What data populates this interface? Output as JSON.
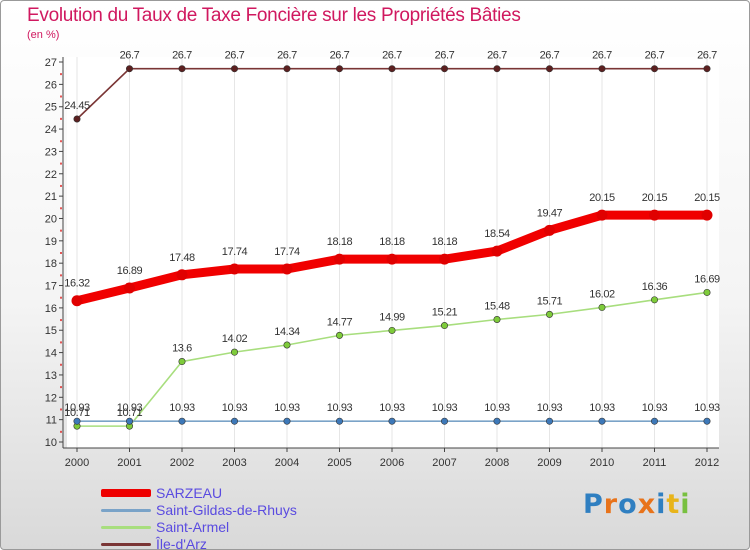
{
  "chart_data": {
    "type": "line",
    "title": "Evolution du Taux de Taxe Foncière sur les Propriétés Bâties",
    "ylabel": "(en %)",
    "xlabel": "",
    "ylim": [
      10,
      27
    ],
    "yticks": [
      10,
      11,
      12,
      13,
      14,
      15,
      16,
      17,
      18,
      19,
      20,
      21,
      22,
      23,
      24,
      25,
      26,
      27
    ],
    "categories": [
      "2000",
      "2001",
      "2002",
      "2003",
      "2004",
      "2005",
      "2006",
      "2007",
      "2008",
      "2009",
      "2010",
      "2011",
      "2012"
    ],
    "series": [
      {
        "name": "Île-d'Arz",
        "color": "#7a3535",
        "marker": "#5c2020",
        "values": [
          24.45,
          26.7,
          26.7,
          26.7,
          26.7,
          26.7,
          26.7,
          26.7,
          26.7,
          26.7,
          26.7,
          26.7,
          26.7
        ],
        "labels": [
          "24.45",
          "26.7",
          "26.7",
          "26.7",
          "26.7",
          "26.7",
          "26.7",
          "26.7",
          "26.7",
          "26.7",
          "26.7",
          "26.7",
          "26.7"
        ]
      },
      {
        "name": "SARZEAU",
        "color": "#f00000",
        "marker": "#e00000",
        "values": [
          16.32,
          16.89,
          17.48,
          17.74,
          17.74,
          18.18,
          18.18,
          18.18,
          18.54,
          19.47,
          20.15,
          20.15,
          20.15
        ],
        "labels": [
          "16.32",
          "16.89",
          "17.48",
          "17.74",
          "17.74",
          "18.18",
          "18.18",
          "18.18",
          "18.54",
          "19.47",
          "20.15",
          "20.15",
          "20.15"
        ]
      },
      {
        "name": "Saint-Armel",
        "color": "#a8de7e",
        "marker": "#7ecb3a",
        "values": [
          10.71,
          10.71,
          13.6,
          14.02,
          14.34,
          14.77,
          14.99,
          15.21,
          15.48,
          15.71,
          16.02,
          16.36,
          16.69
        ],
        "labels": [
          "10.71",
          "10.71",
          "13.6",
          "14.02",
          "14.34",
          "14.77",
          "14.99",
          "15.21",
          "15.48",
          "15.71",
          "16.02",
          "16.36",
          "16.69"
        ]
      },
      {
        "name": "Saint-Gildas-de-Rhuys",
        "color": "#7aa3c8",
        "marker": "#3d78b8",
        "values": [
          10.93,
          10.93,
          10.93,
          10.93,
          10.93,
          10.93,
          10.93,
          10.93,
          10.93,
          10.93,
          10.93,
          10.93,
          10.93
        ],
        "labels": [
          "10.93",
          "10.93",
          "10.93",
          "10.93",
          "10.93",
          "10.93",
          "10.93",
          "10.93",
          "10.93",
          "10.93",
          "10.93",
          "10.93",
          "10.93"
        ]
      }
    ],
    "legend": [
      {
        "name": "SARZEAU",
        "color": "#ee0000",
        "text_color": "#5a4be0",
        "thick": true
      },
      {
        "name": "Saint-Gildas-de-Rhuys",
        "color": "#7aa3c8",
        "text_color": "#5a4be0",
        "thick": false
      },
      {
        "name": "Saint-Armel",
        "color": "#a8de7e",
        "text_color": "#5a4be0",
        "thick": false
      },
      {
        "name": "Île-d'Arz",
        "color": "#7a3535",
        "text_color": "#5a4be0",
        "thick": false
      }
    ]
  },
  "logo": {
    "text": "Proxiti",
    "letters": [
      "P",
      "r",
      "o",
      "x",
      "i",
      "t",
      "i"
    ],
    "colors": [
      "#2f7fc1",
      "#e8731a",
      "#2f7fc1",
      "#e8731a",
      "#2f7fc1",
      "#e8b41a",
      "#78c040"
    ]
  }
}
